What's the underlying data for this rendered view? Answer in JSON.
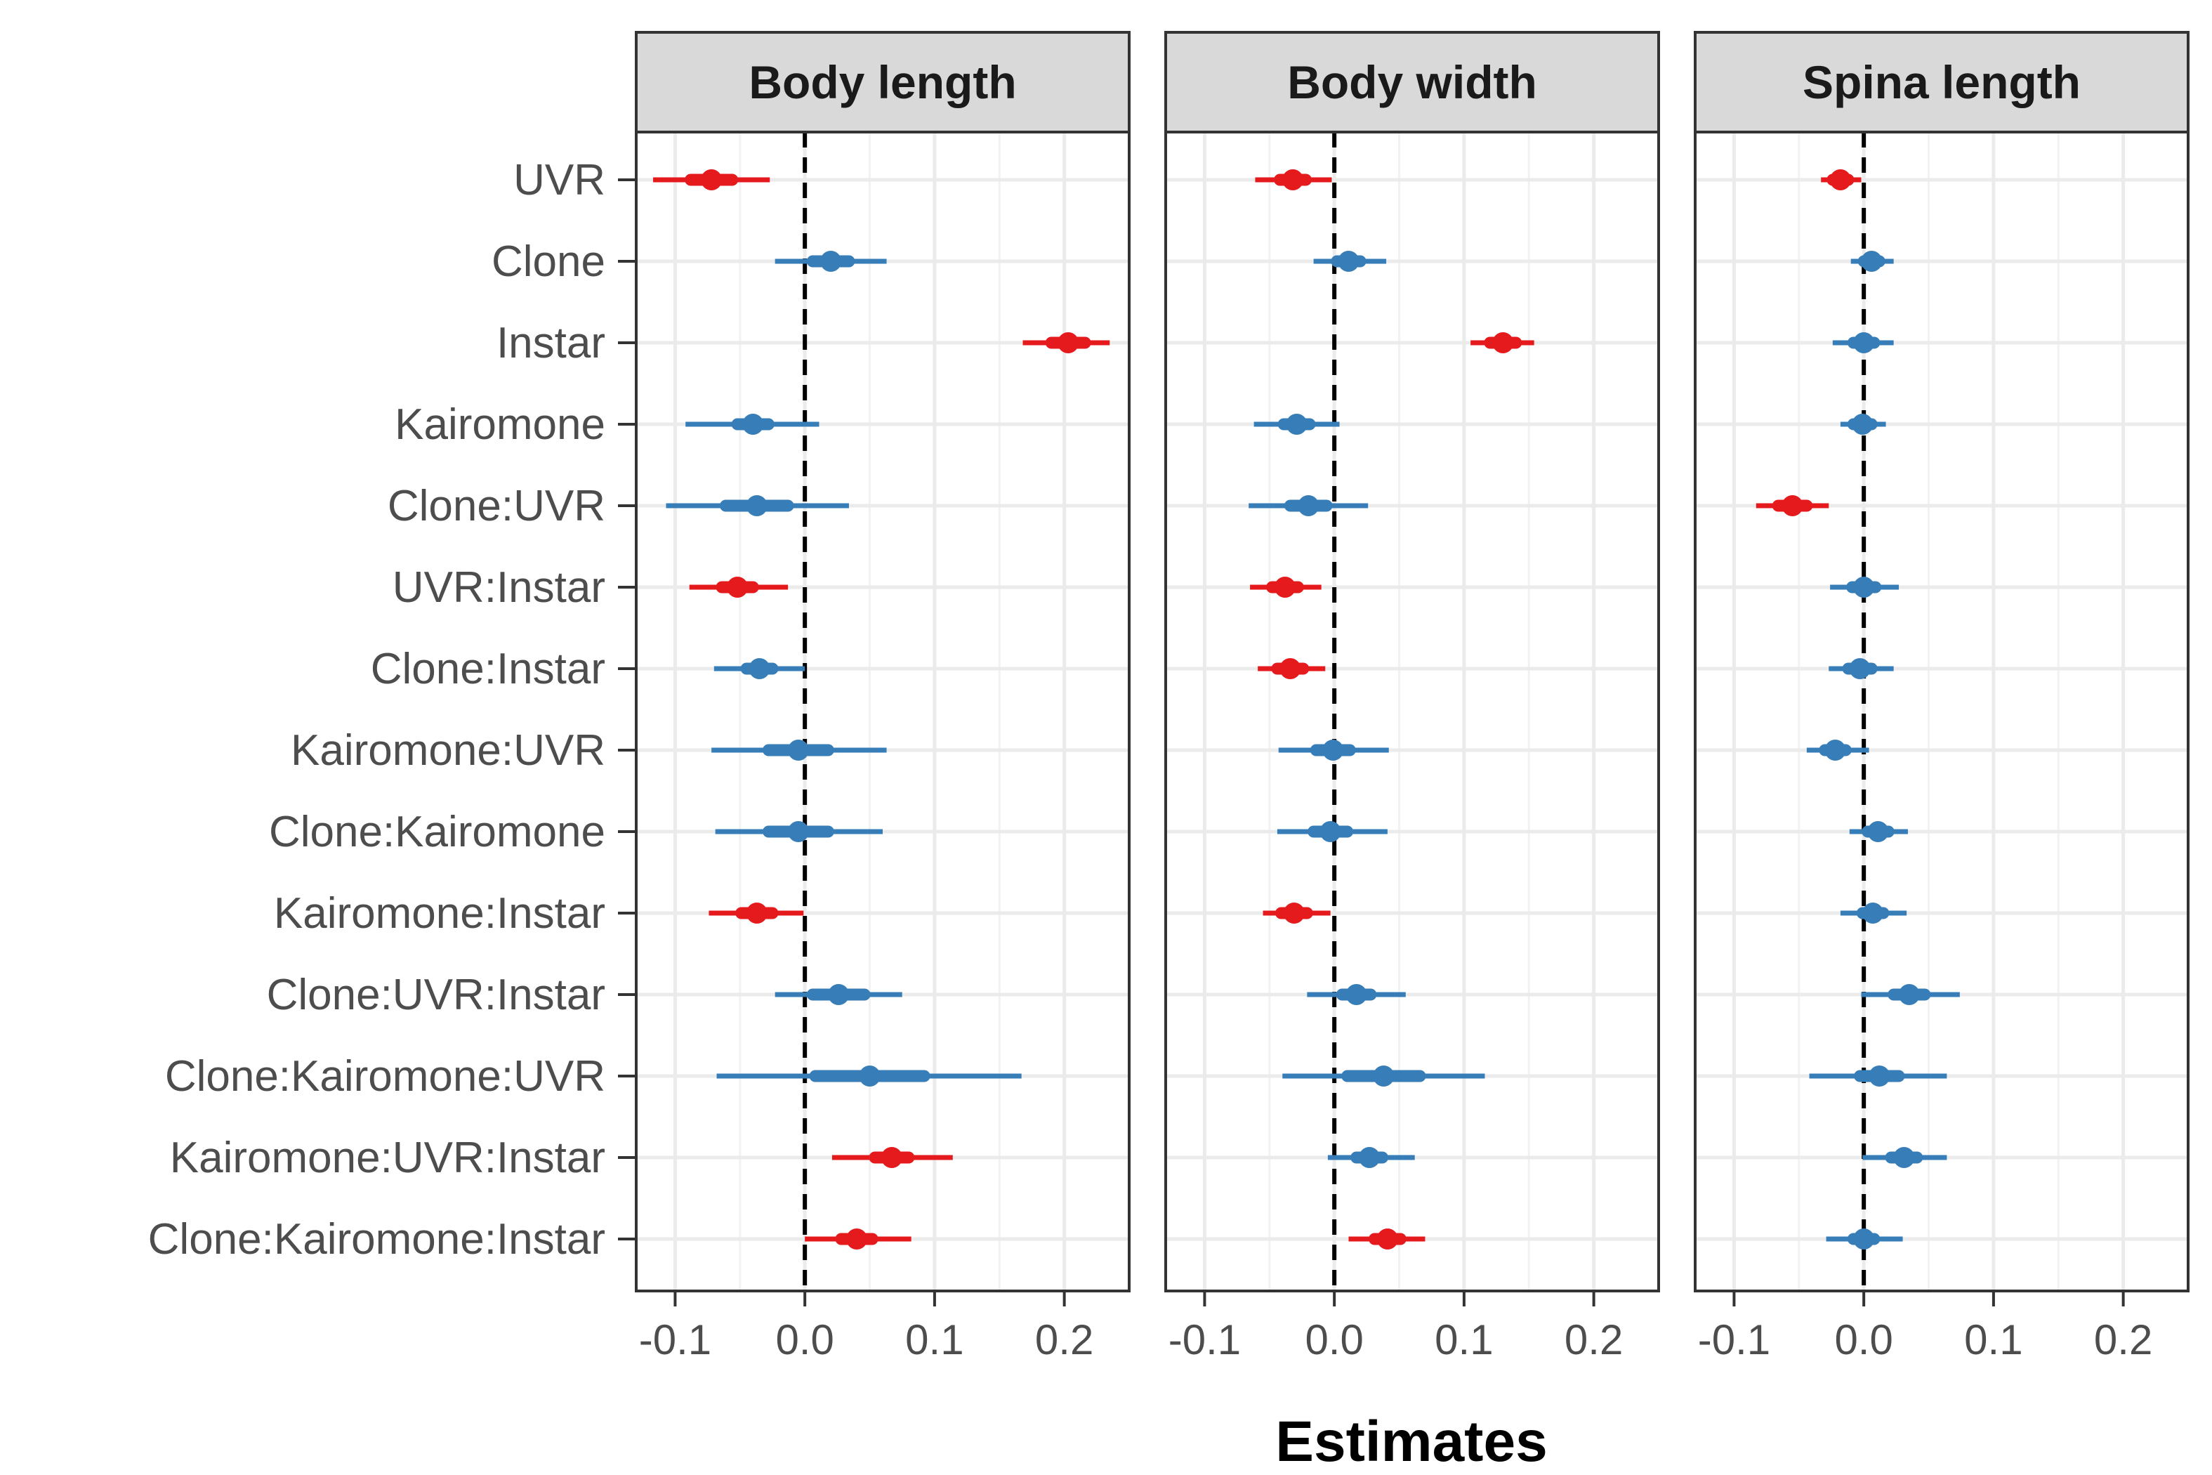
{
  "chart_data": {
    "type": "scatter",
    "subtype": "coefficient-plot",
    "xlabel": "Estimates",
    "x_ticks": [
      "-0.1",
      "0.0",
      "0.1",
      "0.2"
    ],
    "x_tick_values": [
      -0.1,
      0.0,
      0.1,
      0.2
    ],
    "xlim": [
      -0.13,
      0.25
    ],
    "reference_line": 0,
    "grid": true,
    "colors": {
      "positive_significant": "#e41a1c",
      "negative_significant": "#e41a1c",
      "not_significant": "#377eb8"
    },
    "terms": [
      "UVR",
      "Clone",
      "Instar",
      "Kairomone",
      "Clone:UVR",
      "UVR:Instar",
      "Clone:Instar",
      "Kairomone:UVR",
      "Clone:Kairomone",
      "Kairomone:Instar",
      "Clone:UVR:Instar",
      "Clone:Kairomone:UVR",
      "Kairomone:UVR:Instar",
      "Clone:Kairomone:Instar"
    ],
    "panels": [
      {
        "title": "Body length",
        "estimates": [
          -0.072,
          0.02,
          0.203,
          -0.04,
          -0.037,
          -0.052,
          -0.035,
          -0.005,
          -0.005,
          -0.037,
          0.026,
          0.05,
          0.067,
          0.04
        ],
        "inner_low": [
          -0.088,
          0.006,
          0.19,
          -0.052,
          -0.061,
          -0.064,
          -0.045,
          -0.028,
          -0.028,
          -0.049,
          0.006,
          0.008,
          0.054,
          0.028
        ],
        "inner_high": [
          -0.056,
          0.034,
          0.216,
          -0.028,
          -0.013,
          -0.04,
          -0.025,
          0.018,
          0.018,
          -0.025,
          0.046,
          0.092,
          0.08,
          0.052
        ],
        "outer_low": [
          -0.117,
          -0.023,
          0.168,
          -0.092,
          -0.107,
          -0.089,
          -0.07,
          -0.072,
          -0.069,
          -0.074,
          -0.023,
          -0.068,
          0.021,
          0.0
        ],
        "outer_high": [
          -0.027,
          0.063,
          0.235,
          0.011,
          0.034,
          -0.013,
          0.0,
          0.063,
          0.06,
          -0.001,
          0.075,
          0.167,
          0.114,
          0.082
        ],
        "significant": [
          true,
          false,
          true,
          false,
          false,
          true,
          false,
          false,
          false,
          true,
          false,
          false,
          true,
          true
        ]
      },
      {
        "title": "Body width",
        "estimates": [
          -0.032,
          0.011,
          0.13,
          -0.029,
          -0.02,
          -0.038,
          -0.034,
          -0.001,
          -0.003,
          -0.031,
          0.017,
          0.038,
          0.027,
          0.041
        ],
        "inner_low": [
          -0.042,
          0.002,
          0.12,
          -0.039,
          -0.034,
          -0.048,
          -0.044,
          -0.014,
          -0.016,
          -0.041,
          0.006,
          0.01,
          0.017,
          0.031
        ],
        "inner_high": [
          -0.022,
          0.02,
          0.14,
          -0.019,
          -0.006,
          -0.028,
          -0.024,
          0.012,
          0.01,
          -0.021,
          0.028,
          0.066,
          0.037,
          0.051
        ],
        "outer_low": [
          -0.061,
          -0.016,
          0.105,
          -0.062,
          -0.066,
          -0.065,
          -0.059,
          -0.043,
          -0.044,
          -0.055,
          -0.021,
          -0.04,
          -0.005,
          0.011
        ],
        "outer_high": [
          -0.002,
          0.04,
          0.154,
          0.004,
          0.026,
          -0.01,
          -0.007,
          0.042,
          0.041,
          -0.003,
          0.055,
          0.116,
          0.062,
          0.07
        ],
        "significant": [
          true,
          false,
          true,
          false,
          false,
          true,
          true,
          false,
          false,
          true,
          false,
          false,
          false,
          true
        ]
      },
      {
        "title": "Spina length",
        "estimates": [
          -0.018,
          0.006,
          0.0,
          -0.001,
          -0.055,
          0.0,
          -0.003,
          -0.022,
          0.011,
          0.007,
          0.035,
          0.012,
          0.031,
          0.0
        ],
        "inner_low": [
          -0.024,
          0.0,
          -0.008,
          -0.008,
          -0.066,
          -0.009,
          -0.012,
          -0.03,
          0.003,
          -0.001,
          0.023,
          -0.003,
          0.021,
          -0.008
        ],
        "inner_high": [
          -0.012,
          0.012,
          0.008,
          0.006,
          -0.044,
          0.009,
          0.006,
          -0.014,
          0.019,
          0.015,
          0.047,
          0.027,
          0.041,
          0.008
        ],
        "outer_low": [
          -0.033,
          -0.01,
          -0.024,
          -0.018,
          -0.083,
          -0.026,
          -0.027,
          -0.044,
          -0.011,
          -0.018,
          -0.002,
          -0.042,
          -0.001,
          -0.029
        ],
        "outer_high": [
          -0.002,
          0.023,
          0.023,
          0.017,
          -0.027,
          0.027,
          0.023,
          0.004,
          0.034,
          0.033,
          0.074,
          0.064,
          0.064,
          0.03
        ],
        "significant": [
          true,
          false,
          false,
          false,
          true,
          false,
          false,
          false,
          false,
          false,
          false,
          false,
          false,
          false
        ]
      }
    ]
  }
}
